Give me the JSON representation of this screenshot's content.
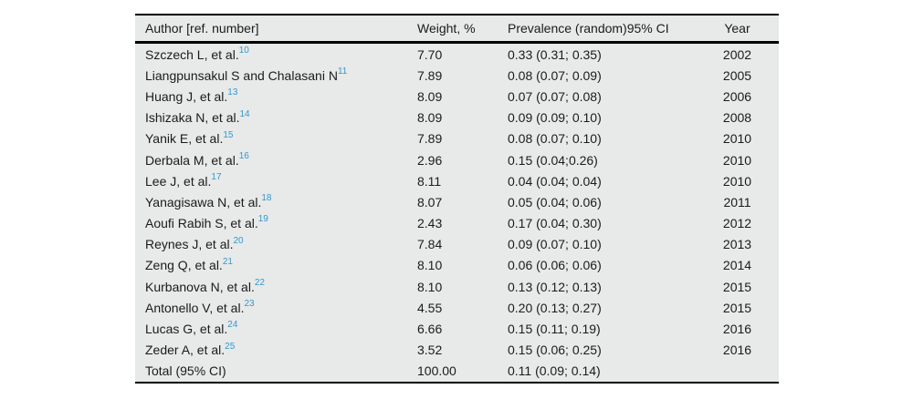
{
  "table": {
    "columns": [
      "Author [ref. number]",
      "Weight, %",
      "Prevalence (random)95% CI",
      "Year"
    ],
    "rows": [
      {
        "author": "Szczech L, et al.",
        "ref": "10",
        "weight": "7.70",
        "prevalence": "0.33 (0.31; 0.35)",
        "year": "2002"
      },
      {
        "author": "Liangpunsakul S and Chalasani N",
        "ref": "11",
        "weight": "7.89",
        "prevalence": "0.08 (0.07; 0.09)",
        "year": "2005"
      },
      {
        "author": "Huang J, et al.",
        "ref": "13",
        "weight": "8.09",
        "prevalence": "0.07 (0.07; 0.08)",
        "year": "2006"
      },
      {
        "author": "Ishizaka N, et al.",
        "ref": "14",
        "weight": "8.09",
        "prevalence": "0.09 (0.09; 0.10)",
        "year": "2008"
      },
      {
        "author": "Yanik E, et al.",
        "ref": "15",
        "weight": "7.89",
        "prevalence": "0.08 (0.07; 0.10)",
        "year": "2010"
      },
      {
        "author": "Derbala M, et al.",
        "ref": "16",
        "weight": "2.96",
        "prevalence": "0.15 (0.04;0.26)",
        "year": "2010"
      },
      {
        "author": "Lee J, et al.",
        "ref": "17",
        "weight": "8.11",
        "prevalence": "0.04 (0.04; 0.04)",
        "year": "2010"
      },
      {
        "author": "Yanagisawa N, et al.",
        "ref": "18",
        "weight": "8.07",
        "prevalence": "0.05 (0.04; 0.06)",
        "year": "2011"
      },
      {
        "author": "Aoufi Rabih S, et al.",
        "ref": "19",
        "weight": "2.43",
        "prevalence": "0.17 (0.04; 0.30)",
        "year": "2012"
      },
      {
        "author": "Reynes J, et al.",
        "ref": "20",
        "weight": "7.84",
        "prevalence": "0.09 (0.07; 0.10)",
        "year": "2013"
      },
      {
        "author": "Zeng Q, et al.",
        "ref": "21",
        "weight": "8.10",
        "prevalence": "0.06 (0.06; 0.06)",
        "year": "2014"
      },
      {
        "author": "Kurbanova N, et al.",
        "ref": "22",
        "weight": "8.10",
        "prevalence": "0.13 (0.12; 0.13)",
        "year": "2015"
      },
      {
        "author": "Antonello V, et al.",
        "ref": "23",
        "weight": "4.55",
        "prevalence": "0.20 (0.13; 0.27)",
        "year": "2015"
      },
      {
        "author": "Lucas G, et al.",
        "ref": "24",
        "weight": "6.66",
        "prevalence": "0.15 (0.11; 0.19)",
        "year": "2016"
      },
      {
        "author": "Zeder A, et al.",
        "ref": "25",
        "weight": "3.52",
        "prevalence": "0.15 (0.06; 0.25)",
        "year": "2016"
      },
      {
        "author": "Total (95% CI)",
        "ref": "",
        "weight": "100.00",
        "prevalence": "0.11 (0.09; 0.14)",
        "year": ""
      }
    ],
    "colors": {
      "table_background": "#e8e9e9",
      "rule": "#000000",
      "text": "#1b1b1b",
      "ref_link": "#3399cc"
    }
  }
}
